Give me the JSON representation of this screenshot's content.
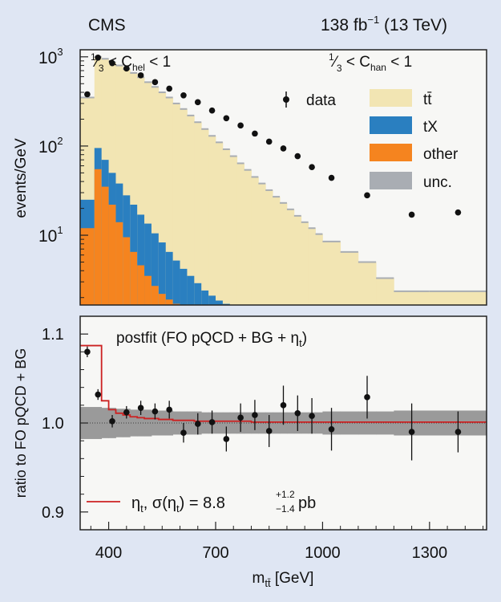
{
  "header": {
    "experiment": "CMS",
    "lumi_main": "138 fb",
    "lumi_sup": "−1",
    "lumi_tail": " (13 TeV)"
  },
  "cuts": {
    "hel": {
      "num": "1",
      "den": "3",
      "lt1": " < C",
      "sub": "hel",
      "lt2": " < 1"
    },
    "han": {
      "num": "1",
      "den": "3",
      "lt1": " < C",
      "sub": "han",
      "lt2": " < 1"
    }
  },
  "legend": {
    "data": "data",
    "ttbar": "tt̄",
    "tx": "tX",
    "other": "other",
    "unc": "unc."
  },
  "colors": {
    "background": "#dfe6f3",
    "ttbar": "#f2e5b3",
    "tx": "#2a7fc0",
    "other": "#f5841f",
    "unc": "#a9adb3",
    "ratio_band": "#9a9a9a",
    "eta_line": "#cc2222"
  },
  "chart_data": [
    {
      "type": "bar",
      "panel": "top",
      "ylabel": "events/GeV",
      "yscale": "log",
      "ylim": [
        1.65,
        1200
      ],
      "xlim": [
        320,
        1460
      ],
      "yticks": [
        {
          "base": "10",
          "exp": "1",
          "value": 10
        },
        {
          "base": "10",
          "exp": "2",
          "value": 100
        },
        {
          "base": "10",
          "exp": "3",
          "value": 1000
        }
      ],
      "bin_edges": [
        320,
        360,
        380,
        400,
        420,
        440,
        460,
        480,
        500,
        520,
        540,
        560,
        580,
        600,
        620,
        640,
        660,
        680,
        700,
        720,
        740,
        760,
        780,
        800,
        820,
        840,
        860,
        880,
        900,
        920,
        940,
        960,
        980,
        1000,
        1050,
        1100,
        1150,
        1200,
        1300,
        1460
      ],
      "series": [
        {
          "name": "tt̄",
          "values": [
            350,
            1000,
            950,
            870,
            800,
            730,
            660,
            590,
            520,
            460,
            400,
            350,
            300,
            260,
            220,
            185,
            155,
            130,
            110,
            92,
            77,
            64,
            54,
            45,
            38,
            32,
            27,
            23,
            19.5,
            16.5,
            14,
            12,
            10.3,
            8.5,
            6.5,
            5,
            3.3,
            2.35,
            2.35
          ]
        },
        {
          "name": "tX",
          "values": [
            25,
            95,
            70,
            50,
            38,
            28,
            22,
            17,
            13.5,
            10.5,
            8.3,
            6.5,
            5.2,
            4.2,
            3.5,
            2.9,
            2.4,
            2.1,
            1.85,
            1.7,
            1.65,
            1.65,
            1.65,
            1.65,
            1.65,
            1.65,
            1.65,
            1.65,
            1.65,
            1.65,
            1.65,
            1.65,
            1.65,
            1.65,
            1.65,
            1.65,
            1.65,
            1.65,
            1.65
          ]
        },
        {
          "name": "other",
          "values": [
            12,
            55,
            35,
            22,
            14,
            9.5,
            6.5,
            4.6,
            3.5,
            2.7,
            2.2,
            1.9,
            1.7,
            1.65,
            1.65,
            1.65,
            1.65,
            1.65,
            1.65,
            1.65,
            1.65,
            1.65,
            1.65,
            1.65,
            1.65,
            1.65,
            1.65,
            1.65,
            1.65,
            1.65,
            1.65,
            1.65,
            1.65,
            1.65,
            1.65,
            1.65,
            1.65,
            1.65,
            1.65
          ]
        }
      ],
      "data_points": {
        "x": [
          340,
          370,
          410,
          450,
          490,
          530,
          570,
          610,
          650,
          690,
          730,
          770,
          810,
          850,
          890,
          930,
          970,
          1025,
          1125,
          1250,
          1380
        ],
        "y": [
          380,
          980,
          850,
          740,
          620,
          520,
          440,
          370,
          310,
          250,
          205,
          170,
          138,
          112,
          94,
          77,
          58,
          44,
          28,
          17,
          18
        ]
      }
    },
    {
      "type": "line",
      "panel": "ratio",
      "title": "postfit (FO pQCD + BG + η",
      "title_sub": "t",
      "title_end": ")",
      "ylabel": "ratio to FO pQCD + BG",
      "xlabel": "m",
      "xlabel_sub": "tt̄",
      "xlabel_unit": " [GeV]",
      "ylim": [
        0.88,
        1.12
      ],
      "xlim": [
        320,
        1460
      ],
      "yticks": [
        "0.9",
        "1.0",
        "1.1"
      ],
      "xticks": [
        "400",
        "700",
        "1000",
        "1300"
      ],
      "xtick_values": [
        400,
        700,
        1000,
        1300
      ],
      "ytick_values": [
        0.9,
        1.0,
        1.1
      ],
      "legend_eta": {
        "a": "η",
        "a_sub": "t",
        "b": ", σ(η",
        "b_sub": "t",
        "c": ") = 8.8",
        "up": "+1.2",
        "down": "−1.4",
        "unit": " pb"
      },
      "band": {
        "x": [
          320,
          360,
          380,
          400,
          420,
          440,
          460,
          480,
          500,
          520,
          540,
          560,
          580,
          600,
          620,
          640,
          660,
          680,
          700,
          720,
          740,
          760,
          780,
          800,
          820,
          840,
          860,
          880,
          900,
          920,
          940,
          960,
          980,
          1000,
          1050,
          1100,
          1150,
          1200,
          1300,
          1460
        ],
        "half_width": [
          0.018,
          0.018,
          0.017,
          0.017,
          0.016,
          0.016,
          0.015,
          0.015,
          0.015,
          0.014,
          0.014,
          0.014,
          0.013,
          0.013,
          0.013,
          0.013,
          0.012,
          0.012,
          0.012,
          0.012,
          0.012,
          0.012,
          0.012,
          0.012,
          0.012,
          0.012,
          0.012,
          0.012,
          0.012,
          0.012,
          0.012,
          0.012,
          0.012,
          0.013,
          0.013,
          0.013,
          0.013,
          0.014,
          0.014,
          0.014
        ]
      },
      "eta_line": {
        "x": [
          320,
          360,
          380,
          400,
          420,
          440,
          460,
          480,
          500,
          520,
          540,
          560,
          580,
          600,
          620,
          640,
          660,
          680,
          700,
          720,
          740,
          760,
          780,
          800,
          820,
          840,
          860,
          880,
          900,
          920,
          940,
          960,
          980,
          1000,
          1050,
          1100,
          1150,
          1200,
          1300,
          1460
        ],
        "y": [
          1.087,
          1.087,
          1.025,
          1.015,
          1.011,
          1.009,
          1.007,
          1.006,
          1.005,
          1.005,
          1.004,
          1.004,
          1.003,
          1.003,
          1.003,
          1.002,
          1.002,
          1.002,
          1.002,
          1.002,
          1.002,
          1.002,
          1.002,
          1.001,
          1.001,
          1.001,
          1.001,
          1.001,
          1.001,
          1.001,
          1.001,
          1.001,
          1.001,
          1.001,
          1.001,
          1.001,
          1.001,
          1.001,
          1.001,
          1.001
        ]
      },
      "points": {
        "x": [
          340,
          370,
          410,
          450,
          490,
          530,
          570,
          610,
          650,
          690,
          730,
          770,
          810,
          850,
          890,
          930,
          970,
          1025,
          1125,
          1250,
          1380
        ],
        "y": [
          1.08,
          1.032,
          1.002,
          1.012,
          1.017,
          1.013,
          1.015,
          0.989,
          0.999,
          1.001,
          0.982,
          1.006,
          1.009,
          0.991,
          1.02,
          1.011,
          1.008,
          0.993,
          1.029,
          0.99,
          0.99
        ],
        "err": [
          0.006,
          0.006,
          0.007,
          0.007,
          0.008,
          0.009,
          0.01,
          0.011,
          0.012,
          0.013,
          0.014,
          0.016,
          0.017,
          0.018,
          0.022,
          0.02,
          0.02,
          0.024,
          0.024,
          0.032,
          0.023
        ]
      }
    }
  ]
}
